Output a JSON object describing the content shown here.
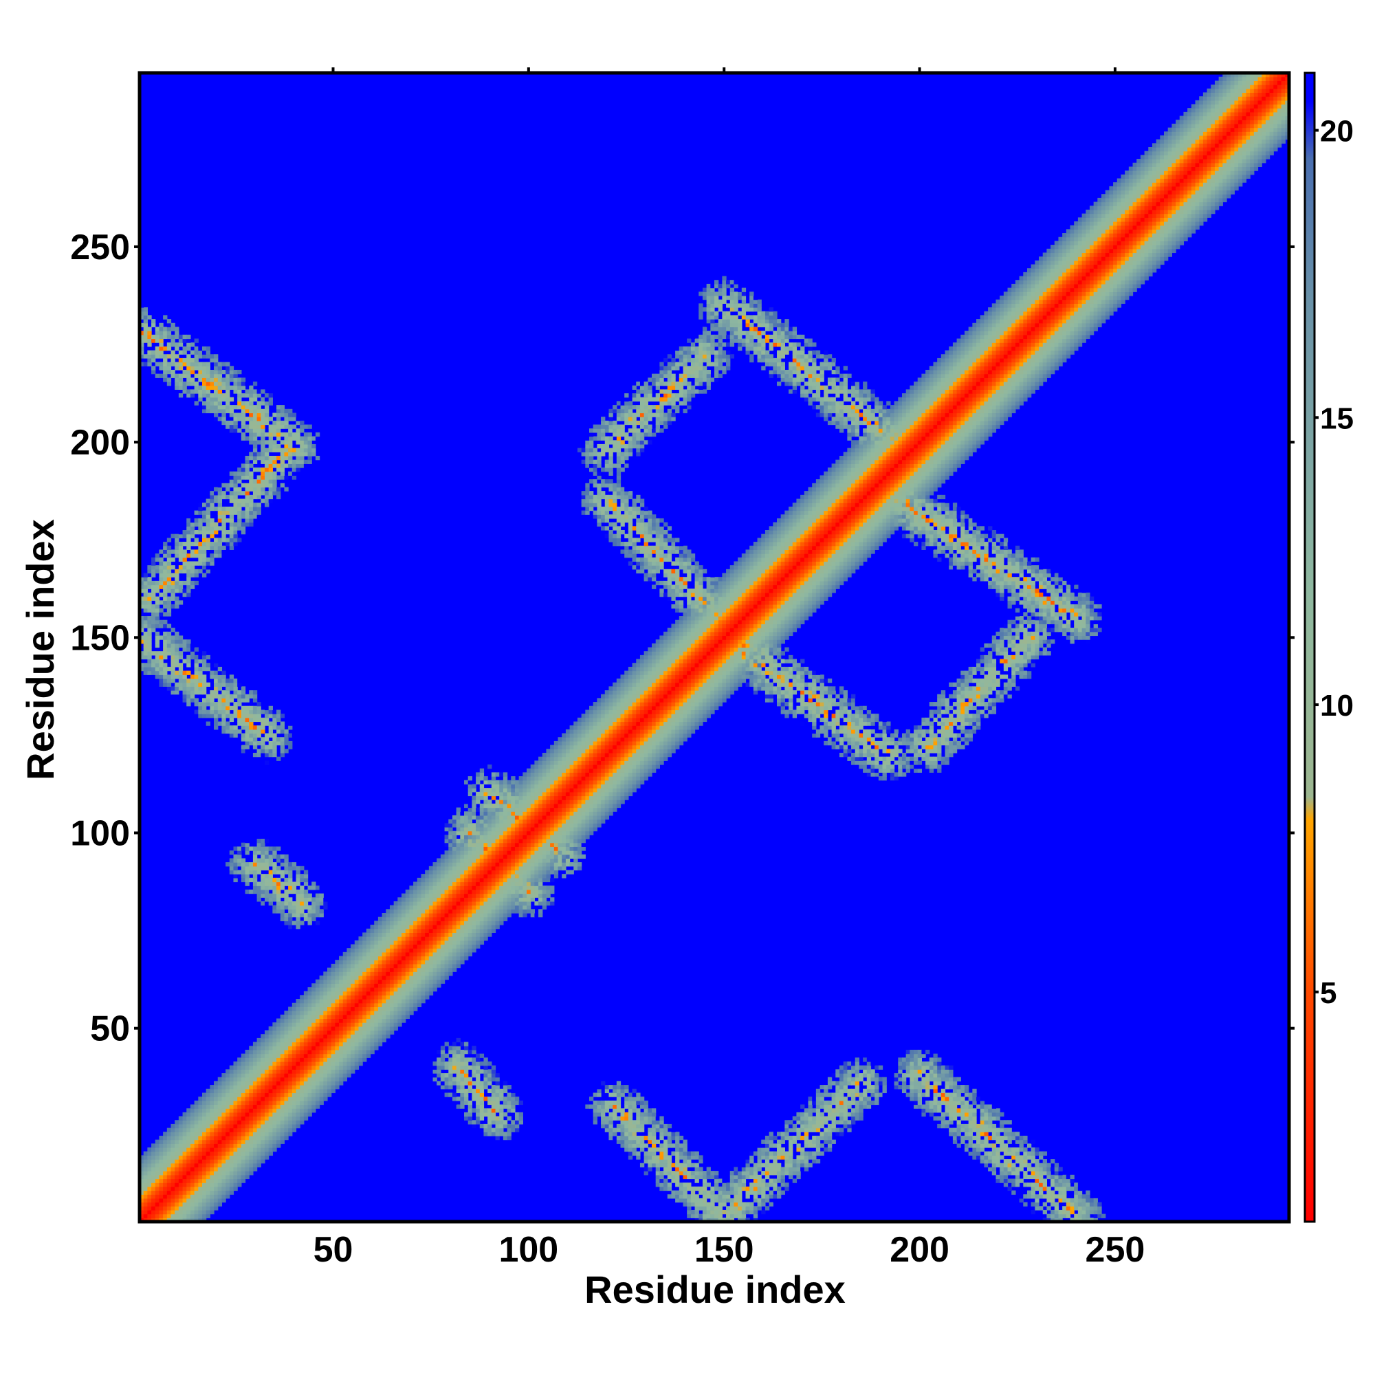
{
  "chart_data": {
    "type": "heatmap",
    "title": "",
    "xlabel": "Residue index",
    "ylabel": "Residue index",
    "xlim": [
      1,
      294
    ],
    "ylim": [
      1,
      294
    ],
    "x_ticks": [
      50,
      100,
      150,
      200,
      250
    ],
    "y_ticks": [
      50,
      100,
      150,
      200,
      250
    ],
    "colorbar": {
      "range": [
        1,
        21
      ],
      "ticks": [
        5,
        10,
        15,
        20
      ],
      "stops": [
        {
          "value": 1,
          "color": "#ff0000"
        },
        {
          "value": 5,
          "color": "#ff4a00"
        },
        {
          "value": 8,
          "color": "#ffa500"
        },
        {
          "value": 8.4,
          "color": "#9cb690"
        },
        {
          "value": 12,
          "color": "#8fb8a0"
        },
        {
          "value": 17,
          "color": "#6a92a8"
        },
        {
          "value": 19.5,
          "color": "#4a6fb0"
        },
        {
          "value": 20.5,
          "color": "#0000ff"
        },
        {
          "value": 21,
          "color": "#0000ff"
        }
      ]
    },
    "colors": {
      "background_value": "#0000ff",
      "contact_close": "#ff0000",
      "contact_mid": "#ffa500",
      "contact_far": "#9cb690"
    },
    "contact_features": [
      {
        "kind": "diagonal",
        "from": [
          1,
          1
        ],
        "to": [
          294,
          294
        ]
      },
      {
        "kind": "antiparallel",
        "from": [
          1,
          228
        ],
        "to": [
          40,
          199
        ]
      },
      {
        "kind": "antiparallel",
        "from": [
          1,
          150
        ],
        "to": [
          33,
          125
        ]
      },
      {
        "kind": "parallel",
        "from": [
          3,
          160
        ],
        "to": [
          38,
          198
        ]
      },
      {
        "kind": "antiparallel",
        "from": [
          120,
          185
        ],
        "to": [
          158,
          145
        ]
      },
      {
        "kind": "antiparallel",
        "from": [
          150,
          235
        ],
        "to": [
          200,
          195
        ]
      },
      {
        "kind": "antiparallel",
        "from": [
          150,
          150
        ],
        "to": [
          192,
          120
        ]
      },
      {
        "kind": "antiparallel",
        "from": [
          195,
          185
        ],
        "to": [
          240,
          155
        ]
      },
      {
        "kind": "parallel",
        "from": [
          120,
          198
        ],
        "to": [
          145,
          222
        ]
      },
      {
        "kind": "parallel",
        "from": [
          202,
          122
        ],
        "to": [
          228,
          150
        ]
      },
      {
        "kind": "antiparallel",
        "from": [
          200,
          38
        ],
        "to": [
          240,
          2
        ]
      },
      {
        "kind": "antiparallel",
        "from": [
          122,
          30
        ],
        "to": [
          150,
          2
        ]
      },
      {
        "kind": "parallel",
        "from": [
          150,
          2
        ],
        "to": [
          185,
          36
        ]
      },
      {
        "kind": "antiparallel",
        "from": [
          30,
          92
        ],
        "to": [
          42,
          82
        ]
      },
      {
        "kind": "antiparallel",
        "from": [
          85,
          100
        ],
        "to": [
          100,
          85
        ]
      },
      {
        "kind": "antiparallel",
        "from": [
          90,
          110
        ],
        "to": [
          108,
          95
        ]
      },
      {
        "kind": "antiparallel",
        "from": [
          82,
          40
        ],
        "to": [
          92,
          28
        ]
      }
    ]
  }
}
